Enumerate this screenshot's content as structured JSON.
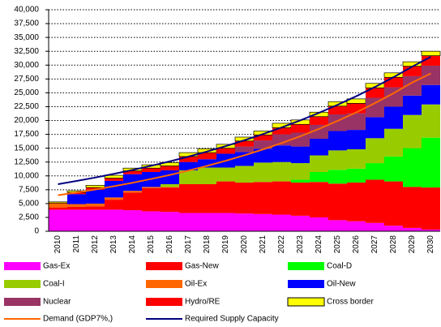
{
  "chart_data": {
    "type": "stacked-bar-line",
    "categories": [
      "2010",
      "2011",
      "2012",
      "2013",
      "2014",
      "2015",
      "2016",
      "2017",
      "2018",
      "2019",
      "2020",
      "2021",
      "2022",
      "2023",
      "2024",
      "2025",
      "2026",
      "2027",
      "2028",
      "2029",
      "2030"
    ],
    "series": [
      {
        "name": "Gas-Ex",
        "color": "#ff00ff",
        "values": [
          3900,
          3900,
          3900,
          3900,
          3800,
          3600,
          3500,
          3300,
          3300,
          3300,
          3200,
          3100,
          3000,
          2800,
          2500,
          2000,
          1800,
          1500,
          1000,
          600,
          300
        ]
      },
      {
        "name": "Gas-New",
        "color": "#ff0000",
        "values": [
          400,
          500,
          600,
          1800,
          3200,
          4200,
          4400,
          5200,
          5200,
          5700,
          5600,
          5800,
          6000,
          6000,
          6400,
          6600,
          7000,
          7800,
          8000,
          7400,
          7600
        ]
      },
      {
        "name": "Coal-D",
        "color": "#00ff00",
        "values": [
          0,
          0,
          0,
          0,
          0,
          0,
          0,
          0,
          0,
          0,
          0,
          0,
          0,
          500,
          1800,
          2500,
          2500,
          3000,
          4500,
          7000,
          9000
        ]
      },
      {
        "name": "Coal-I",
        "color": "#99cc00",
        "values": [
          0,
          0,
          0,
          0,
          0,
          0,
          500,
          2500,
          3000,
          2500,
          3000,
          3500,
          3500,
          3000,
          3000,
          3500,
          3500,
          4500,
          5000,
          6000,
          6000
        ]
      },
      {
        "name": "Oil-Ex",
        "color": "#ff6600",
        "values": [
          800,
          500,
          500,
          400,
          300,
          200,
          100,
          0,
          0,
          0,
          0,
          0,
          0,
          0,
          0,
          0,
          0,
          0,
          0,
          0,
          0
        ]
      },
      {
        "name": "Oil-New",
        "color": "#0000ff",
        "values": [
          0,
          1800,
          2500,
          3000,
          3000,
          2700,
          2500,
          1500,
          1500,
          2500,
          2500,
          2500,
          3000,
          3000,
          3000,
          3500,
          3500,
          3800,
          4000,
          3500,
          3500
        ]
      },
      {
        "name": "Nuclear",
        "color": "#993366",
        "values": [
          0,
          0,
          0,
          0,
          0,
          0,
          0,
          0,
          0,
          0,
          1000,
          1500,
          2000,
          2500,
          2500,
          3000,
          3000,
          3500,
          3500,
          3500,
          3500
        ]
      },
      {
        "name": "Hydro/RE",
        "color": "#ff0000",
        "values": [
          0,
          300,
          400,
          500,
          600,
          700,
          800,
          1000,
          1200,
          1000,
          1000,
          1000,
          1200,
          1500,
          1500,
          1500,
          1800,
          1800,
          1800,
          1800,
          1800
        ]
      },
      {
        "name": "Cross border",
        "color": "#ffff00",
        "values": [
          200,
          300,
          400,
          500,
          500,
          600,
          600,
          700,
          700,
          700,
          700,
          700,
          800,
          800,
          800,
          800,
          800,
          800,
          800,
          800,
          800
        ]
      }
    ],
    "lines": [
      {
        "name": "Demand (GDP7%,)",
        "color": "#ff6600",
        "values": [
          6500,
          7000,
          7550,
          8130,
          8760,
          9440,
          10170,
          10960,
          11810,
          12730,
          13720,
          14780,
          15930,
          17160,
          18490,
          19930,
          21470,
          23140,
          24930,
          26860,
          28500
        ]
      },
      {
        "name": "Required Supply Capacity",
        "color": "#000080",
        "values": [
          8500,
          9080,
          9700,
          10360,
          11060,
          11820,
          12620,
          13480,
          14400,
          15380,
          16430,
          17550,
          18740,
          20020,
          21380,
          22840,
          24390,
          26050,
          27830,
          29720,
          31500
        ]
      }
    ],
    "ylim": [
      0,
      40000
    ],
    "yticks": [
      0,
      {
        "value": 2500,
        "label": "2,500"
      },
      {
        "value": 5000,
        "label": "5,000"
      },
      {
        "value": 7500,
        "label": "7,500"
      },
      {
        "value": 10000,
        "label": "10,000"
      },
      {
        "value": 12500,
        "label": "12,500"
      },
      {
        "value": 15000,
        "label": "15,000"
      },
      {
        "value": 17500,
        "label": "17,500"
      },
      {
        "value": 20000,
        "label": "20,000"
      },
      {
        "value": 22500,
        "label": "22,500"
      },
      {
        "value": 25000,
        "label": "25,000"
      },
      {
        "value": 27500,
        "label": "27,500"
      },
      {
        "value": 30000,
        "label": "30,000"
      },
      {
        "value": 32500,
        "label": "32,500"
      },
      {
        "value": 35000,
        "label": "35,000"
      },
      {
        "value": 37500,
        "label": "37,500"
      },
      {
        "value": 40000,
        "label": "40,000"
      }
    ],
    "grid": true
  }
}
